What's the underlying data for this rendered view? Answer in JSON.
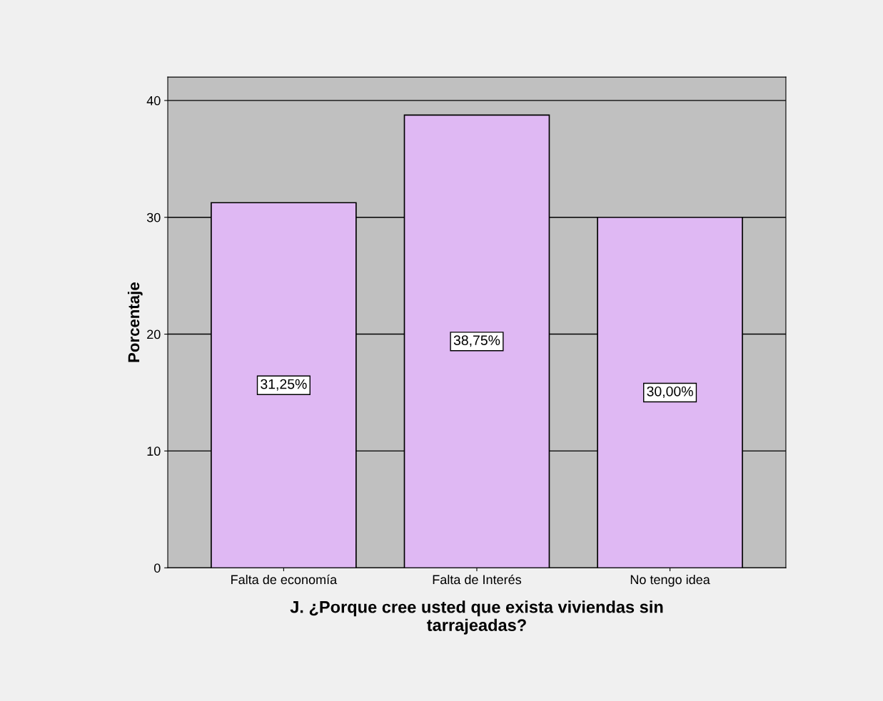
{
  "chart_data": {
    "type": "bar",
    "xlabel": "J. ¿Porque cree usted que exista viviendas sin\ntarrajeadas?",
    "ylabel": "Porcentaje",
    "categories": [
      "Falta de economía",
      "Falta de Interés",
      "No tengo idea"
    ],
    "values": [
      31.25,
      38.75,
      30.0
    ],
    "value_labels": [
      "31,25%",
      "38,75%",
      "30,00%"
    ],
    "color": "#dfb8f3",
    "ylim": [
      0,
      42
    ],
    "yticks": [
      0,
      10,
      20,
      30,
      40
    ],
    "grid": "y"
  }
}
